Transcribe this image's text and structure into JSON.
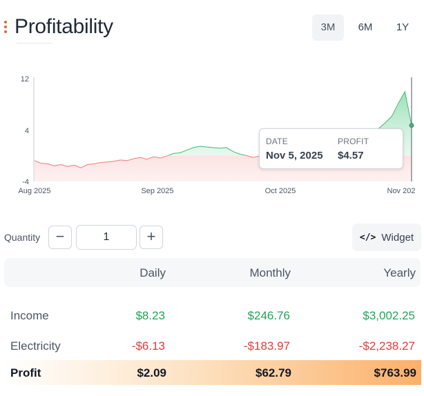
{
  "header": {
    "title": "Profitability",
    "menu_icon": "vertical-dots-icon",
    "accent": "#e0662f",
    "ranges": [
      {
        "label": "3M",
        "active": true
      },
      {
        "label": "6M",
        "active": false
      },
      {
        "label": "1Y",
        "active": false
      }
    ]
  },
  "chart_data": {
    "type": "area",
    "y_ticks": [
      "12",
      "4",
      "-4"
    ],
    "x_ticks": [
      "Aug 2025",
      "Sep 2025",
      "Oct 2025",
      "Nov 202"
    ],
    "ylim": [
      -4,
      12
    ],
    "series": [
      {
        "color_negative": "#f8c2c2",
        "color_positive": "#a7e3bf",
        "values": [
          -0.8,
          -1.2,
          -1.3,
          -1.6,
          -1.4,
          -1.7,
          -1.5,
          -1.9,
          -1.4,
          -1.3,
          -1.1,
          -1.0,
          -0.9,
          -0.7,
          -0.8,
          -0.5,
          -0.3,
          -0.6,
          -0.2,
          -0.4,
          -0.1,
          0.3,
          0.4,
          0.8,
          1.2,
          1.4,
          1.3,
          1.2,
          1.1,
          1.2,
          0.6,
          0.2,
          0.0,
          -0.3,
          -0.1,
          -0.2,
          -0.4,
          -0.5,
          -0.3,
          -0.4,
          -0.2,
          -0.1,
          -0.2,
          -0.1,
          -0.2,
          -0.3,
          0.2,
          0.8,
          1.6,
          2.0,
          2.6,
          3.3,
          4.1,
          5.0,
          6.0,
          8.0,
          9.8,
          4.6
        ]
      }
    ]
  },
  "tooltip": {
    "date_label": "DATE",
    "date_value": "Nov 5, 2025",
    "profit_label": "PROFIT",
    "profit_value": "$4.57"
  },
  "quantity": {
    "label": "Quantity",
    "value": "1",
    "minus": "−",
    "plus": "+"
  },
  "widget": {
    "icon": "code-icon",
    "icon_glyph": "</>",
    "label": "Widget"
  },
  "table": {
    "headers": [
      "Daily",
      "Monthly",
      "Yearly"
    ],
    "income": {
      "label": "Income",
      "daily": "$8.23",
      "monthly": "$246.76",
      "yearly": "$3,002.25"
    },
    "electricity": {
      "label": "Electricity",
      "daily": "-$6.13",
      "monthly": "-$183.97",
      "yearly": "-$2,238.27"
    },
    "profit": {
      "label": "Profit",
      "daily": "$2.09",
      "monthly": "$62.79",
      "yearly": "$763.99"
    },
    "colors": {
      "positive": "#22a35a",
      "negative": "#e23b3b",
      "profit_gradient_end": "#fbb069"
    }
  }
}
